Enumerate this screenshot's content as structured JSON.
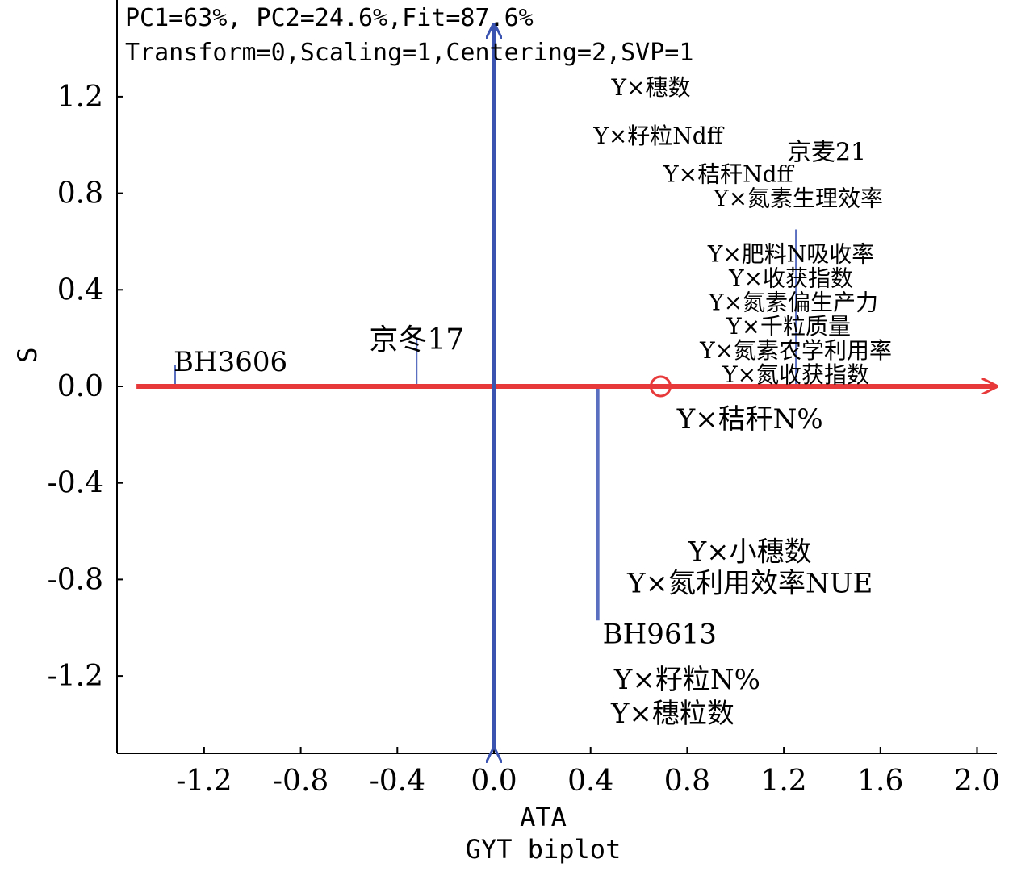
{
  "header": {
    "line1": "PC1=63%, PC2=24.6%,Fit=87.6%",
    "line2": "Transform=0,Scaling=1,Centering=2,SVP=1"
  },
  "chart_data": {
    "type": "scatter",
    "title": "GYT biplot",
    "xlabel": "ATA",
    "ylabel": "S",
    "xlim": [
      -1.55,
      2.1
    ],
    "ylim": [
      -1.52,
      1.52
    ],
    "x_ticks": [
      -1.2,
      -0.8,
      -0.4,
      0.0,
      0.4,
      0.8,
      1.2,
      1.6,
      2.0
    ],
    "x_tick_labels": [
      "-1.2",
      "-0.8",
      "-0.4",
      "0.0",
      "0.4",
      "0.8",
      "1.2",
      "1.6",
      "2.0"
    ],
    "y_ticks": [
      1.2,
      0.8,
      0.4,
      0.0,
      -0.4,
      -0.8,
      -1.2
    ],
    "y_tick_labels": [
      "1.2",
      "0.8",
      "0.4",
      "0.0",
      "-0.4",
      "-0.8",
      "-1.2"
    ],
    "grid": false,
    "genotypes": [
      {
        "label": "BH3606",
        "x": -1.32,
        "y": 0.09
      },
      {
        "label": "京冬17",
        "x": -0.32,
        "y": 0.2
      },
      {
        "label": "BH9613",
        "x": 0.43,
        "y": -0.97
      },
      {
        "label": "京麦21",
        "x": 1.25,
        "y": 0.65
      }
    ],
    "traits": [
      {
        "label": "Y×穗数",
        "x": 0.65,
        "y": 1.24
      },
      {
        "label": "Y×籽粒Ndff",
        "x": 0.68,
        "y": 1.04
      },
      {
        "label": "Y×秸秆Ndff",
        "x": 0.97,
        "y": 0.88
      },
      {
        "label": "Y×氮素生理效率",
        "x": 1.26,
        "y": 0.78
      },
      {
        "label": "Y×肥料N吸收率",
        "x": 1.23,
        "y": 0.55
      },
      {
        "label": "Y×收获指数",
        "x": 1.23,
        "y": 0.45
      },
      {
        "label": "Y×氮素偏生产力",
        "x": 1.24,
        "y": 0.35
      },
      {
        "label": "Y×千粒质量",
        "x": 1.22,
        "y": 0.25
      },
      {
        "label": "Y×氮素农学利用率",
        "x": 1.25,
        "y": 0.15
      },
      {
        "label": "Y×氮收获指数",
        "x": 1.25,
        "y": 0.05
      },
      {
        "label": "Y×秸秆N%",
        "x": 1.06,
        "y": -0.14
      },
      {
        "label": "Y×小穗数",
        "x": 1.06,
        "y": -0.69
      },
      {
        "label": "Y×氮利用效率NUE",
        "x": 1.06,
        "y": -0.82
      },
      {
        "label": "Y×籽粒N%",
        "x": 0.8,
        "y": -1.22
      },
      {
        "label": "Y×穗粒数",
        "x": 0.74,
        "y": -1.36
      }
    ],
    "average_marker": {
      "x": 0.69,
      "y": 0.0
    },
    "colors": {
      "ata_axis": "#e8393a",
      "vertical_axis": "#3a53b0",
      "projection_line": "#5a6fc0",
      "marker": "#e8393a",
      "frame": "#000000"
    }
  }
}
